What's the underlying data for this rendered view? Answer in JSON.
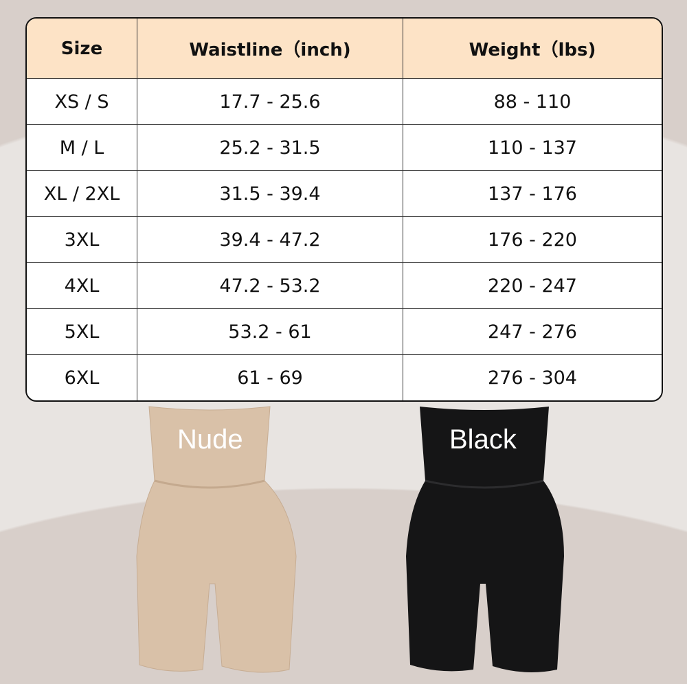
{
  "table": {
    "headers": [
      "Size",
      "Waistline（inch)",
      "Weight（lbs)"
    ],
    "rows": [
      [
        "XS / S",
        "17.7 - 25.6",
        "88 - 110"
      ],
      [
        "M / L",
        "25.2 - 31.5",
        "110 - 137"
      ],
      [
        "XL / 2XL",
        "31.5 - 39.4",
        "137 - 176"
      ],
      [
        "3XL",
        "39.4 - 47.2",
        "176 - 220"
      ],
      [
        "4XL",
        "47.2 - 53.2",
        "220 - 247"
      ],
      [
        "5XL",
        "53.2 - 61",
        "247 - 276"
      ],
      [
        "6XL",
        "61 - 69",
        "276 - 304"
      ]
    ]
  },
  "products": [
    {
      "label": "Nude",
      "color": "#d9c1a8"
    },
    {
      "label": "Black",
      "color": "#151516"
    }
  ]
}
